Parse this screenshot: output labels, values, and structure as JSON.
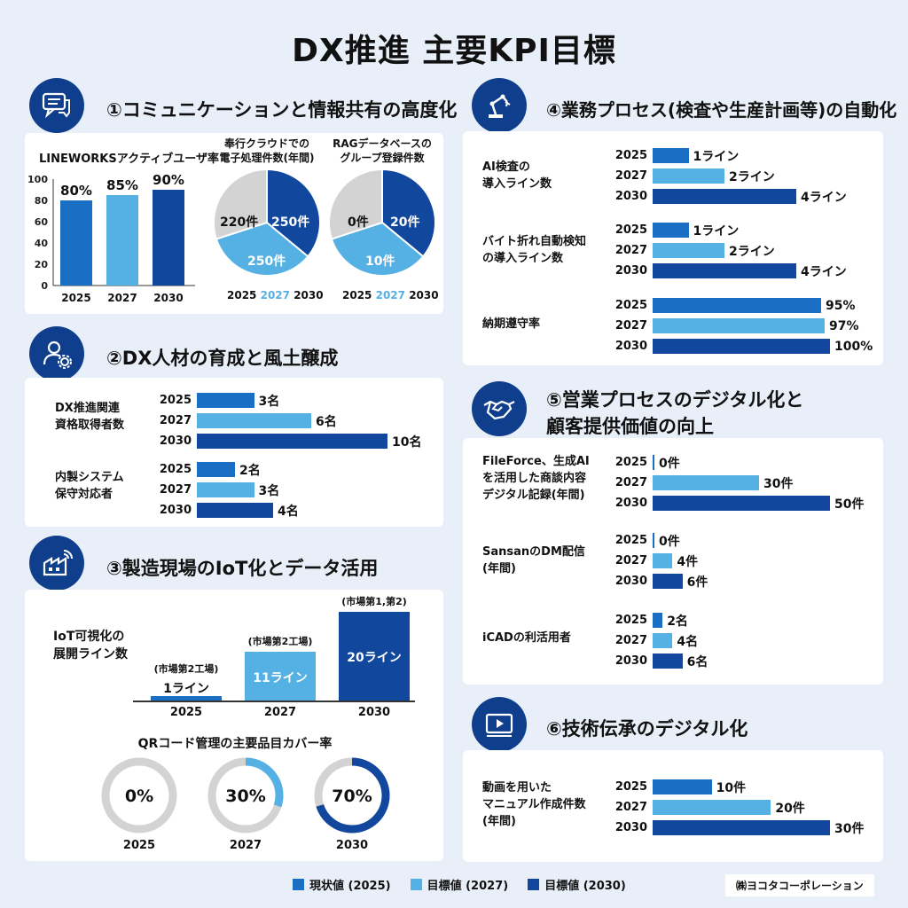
{
  "title": "DX推進 主要KPI目標",
  "colors": {
    "c2025": "#1a6fc4",
    "c2027": "#55b0e4",
    "c2030": "#12479e",
    "navy": "#0f3f8c",
    "pie_gray": "#d3d3d3"
  },
  "s1": {
    "title": "①コミュニケーションと情報共有の高度化",
    "icon": "chat-icon",
    "lw_title": "LINEWORKSアクティブユーザ率",
    "lw_yticks": [
      "100",
      "80",
      "60",
      "40",
      "20",
      "0"
    ],
    "lw_years": [
      "2025",
      "2027",
      "2030"
    ],
    "lw_values": [
      80,
      85,
      90
    ],
    "lw_labels": [
      "80%",
      "85%",
      "90%"
    ],
    "pie1_title1": "奉行クラウドでの",
    "pie1_title2": "電子処理件数(年間)",
    "pie1": {
      "gray": "220件",
      "y2030": "250件",
      "y2027": "250件"
    },
    "pie2_title1": "RAGデータベースの",
    "pie2_title2": "グループ登録件数",
    "pie2": {
      "gray": "0件",
      "y2030": "20件",
      "y2027": "10件"
    },
    "pie_legend": [
      "2025",
      "2027",
      "2030"
    ]
  },
  "s2": {
    "title": "②DX人材の育成と風土醸成",
    "icon": "person-gear-icon",
    "g1": {
      "label1": "DX推進関連",
      "label2": "資格取得者数",
      "years": [
        "2025",
        "2027",
        "2030"
      ],
      "values": [
        3,
        6,
        10
      ],
      "labels": [
        "3名",
        "6名",
        "10名"
      ]
    },
    "g2": {
      "label1": "内製システム",
      "label2": "保守対応者",
      "years": [
        "2025",
        "2027",
        "2030"
      ],
      "values": [
        2,
        3,
        4
      ],
      "labels": [
        "2名",
        "3名",
        "4名"
      ]
    }
  },
  "s3": {
    "title": "③製造現場のIoT化とデータ活用",
    "icon": "factory-icon",
    "iot_label1": "IoT可視化の",
    "iot_label2": "展開ライン数",
    "iot": [
      {
        "year": "2025",
        "value": 1,
        "label": "1ライン",
        "note": "(市場第2工場)"
      },
      {
        "year": "2027",
        "value": 11,
        "label": "11ライン",
        "note": "(市場第2工場)"
      },
      {
        "year": "2030",
        "value": 20,
        "label": "20ライン",
        "note": "(市場第1,第2)"
      }
    ],
    "qr_title": "QRコード管理の主要品目カバー率",
    "qr": [
      {
        "year": "2025",
        "value": 0,
        "label": "0%"
      },
      {
        "year": "2027",
        "value": 30,
        "label": "30%"
      },
      {
        "year": "2030",
        "value": 70,
        "label": "70%"
      }
    ]
  },
  "s4": {
    "title": "④業務プロセス(検査や生産計画等)の自動化",
    "icon": "robot-arm-icon",
    "g1": {
      "label1": "AI検査の",
      "label2": "導入ライン数",
      "years": [
        "2025",
        "2027",
        "2030"
      ],
      "values": [
        1,
        2,
        4
      ],
      "labels": [
        "1ライン",
        "2ライン",
        "4ライン"
      ]
    },
    "g2": {
      "label1": "バイト折れ自動検知",
      "label2": "の導入ライン数",
      "years": [
        "2025",
        "2027",
        "2030"
      ],
      "values": [
        1,
        2,
        4
      ],
      "labels": [
        "1ライン",
        "2ライン",
        "4ライン"
      ]
    },
    "g3": {
      "label1": "納期遵守率",
      "years": [
        "2025",
        "2027",
        "2030"
      ],
      "values": [
        95,
        97,
        100
      ],
      "labels": [
        "95%",
        "97%",
        "100%"
      ]
    }
  },
  "s5": {
    "title1": "⑤営業プロセスのデジタル化と",
    "title2": "顧客提供価値の向上",
    "icon": "handshake-icon",
    "g1": {
      "label1": "FileForce、生成AI",
      "label2": "を活用した商談内容",
      "label3": "デジタル記録(年間)",
      "years": [
        "2025",
        "2027",
        "2030"
      ],
      "values": [
        0,
        30,
        50
      ],
      "labels": [
        "0件",
        "30件",
        "50件"
      ]
    },
    "g2": {
      "label1": "SansanのDM配信",
      "label2": "(年間)",
      "years": [
        "2025",
        "2027",
        "2030"
      ],
      "values": [
        0,
        4,
        6
      ],
      "labels": [
        "0件",
        "4件",
        "6件"
      ]
    },
    "g3": {
      "label1": "iCADの利活用者",
      "years": [
        "2025",
        "2027",
        "2030"
      ],
      "values": [
        2,
        4,
        6
      ],
      "labels": [
        "2名",
        "4名",
        "6名"
      ]
    }
  },
  "s6": {
    "title": "⑥技術伝承のデジタル化",
    "icon": "video-play-icon",
    "g1": {
      "label1": "動画を用いた",
      "label2": "マニュアル作成件数",
      "label3": "(年間)",
      "years": [
        "2025",
        "2027",
        "2030"
      ],
      "values": [
        10,
        20,
        30
      ],
      "labels": [
        "10件",
        "20件",
        "30件"
      ]
    }
  },
  "legend": [
    "現状値 (2025)",
    "目標値 (2027)",
    "目標値 (2030)"
  ],
  "company": "㈱ヨコタコーポレーション",
  "chart_data": [
    {
      "type": "bar",
      "title": "LINEWORKSアクティブユーザ率",
      "categories": [
        "2025",
        "2027",
        "2030"
      ],
      "values": [
        80,
        85,
        90
      ],
      "ylim": [
        0,
        100
      ]
    },
    {
      "type": "pie",
      "title": "奉行クラウドでの電子処理件数(年間)",
      "labels": [
        "2025",
        "2027",
        "2030"
      ],
      "values": [
        220,
        250,
        250
      ]
    },
    {
      "type": "pie",
      "title": "RAGデータベースのグループ登録件数",
      "labels": [
        "2025",
        "2027",
        "2030"
      ],
      "values": [
        0,
        10,
        20
      ]
    },
    {
      "type": "bar",
      "title": "DX推進関連資格取得者数",
      "categories": [
        "2025",
        "2027",
        "2030"
      ],
      "values": [
        3,
        6,
        10
      ]
    },
    {
      "type": "bar",
      "title": "内製システム保守対応者",
      "categories": [
        "2025",
        "2027",
        "2030"
      ],
      "values": [
        2,
        3,
        4
      ]
    },
    {
      "type": "bar",
      "title": "IoT可視化の展開ライン数",
      "categories": [
        "2025",
        "2027",
        "2030"
      ],
      "values": [
        1,
        11,
        20
      ]
    },
    {
      "type": "pie",
      "title": "QRコード管理の主要品目カバー率",
      "categories": [
        "2025",
        "2027",
        "2030"
      ],
      "values": [
        0,
        30,
        70
      ]
    },
    {
      "type": "bar",
      "title": "AI検査の導入ライン数",
      "categories": [
        "2025",
        "2027",
        "2030"
      ],
      "values": [
        1,
        2,
        4
      ]
    },
    {
      "type": "bar",
      "title": "バイト折れ自動検知の導入ライン数",
      "categories": [
        "2025",
        "2027",
        "2030"
      ],
      "values": [
        1,
        2,
        4
      ]
    },
    {
      "type": "bar",
      "title": "納期遵守率",
      "categories": [
        "2025",
        "2027",
        "2030"
      ],
      "values": [
        95,
        97,
        100
      ]
    },
    {
      "type": "bar",
      "title": "FileForce、生成AIを活用した商談内容デジタル記録(年間)",
      "categories": [
        "2025",
        "2027",
        "2030"
      ],
      "values": [
        0,
        30,
        50
      ]
    },
    {
      "type": "bar",
      "title": "SansanのDM配信(年間)",
      "categories": [
        "2025",
        "2027",
        "2030"
      ],
      "values": [
        0,
        4,
        6
      ]
    },
    {
      "type": "bar",
      "title": "iCADの利活用者",
      "categories": [
        "2025",
        "2027",
        "2030"
      ],
      "values": [
        2,
        4,
        6
      ]
    },
    {
      "type": "bar",
      "title": "動画を用いたマニュアル作成件数(年間)",
      "categories": [
        "2025",
        "2027",
        "2030"
      ],
      "values": [
        10,
        20,
        30
      ]
    }
  ]
}
